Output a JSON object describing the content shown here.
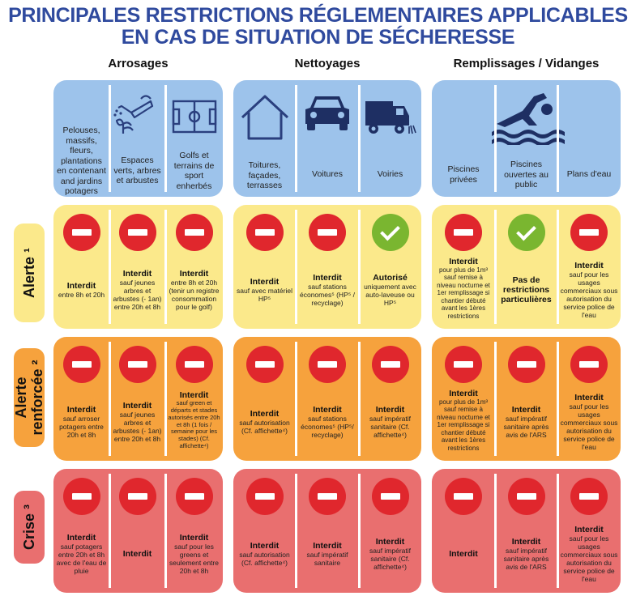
{
  "title": {
    "line1": "PRINCIPALES RESTRICTIONS RÉGLEMENTAIRES APPLICABLES",
    "line2": "EN CAS DE SITUATION DE SÉCHERESSE"
  },
  "categories": {
    "arrosages": "Arrosages",
    "nettoyages": "Nettoyages",
    "remplissages": "Remplissages / Vidanges"
  },
  "headers": {
    "pelouses": "Pelouses, massifs, fleurs, plantations en contenant and jardins potagers",
    "espaces": "Espaces verts, arbres et arbustes",
    "golfs": "Golfs et terrains de sport enherbés",
    "toitures": "Toitures, façades, terrasses",
    "voitures": "Voitures",
    "voiries": "Voiries",
    "piscines_privees": "Piscines privées",
    "piscines_public": "Piscines ouvertes au public",
    "plans": "Plans d'eau"
  },
  "levels": {
    "alerte": "Alerte ¹",
    "renforcee": "Alerte\nrenforcée ²",
    "crise": "Crise ³"
  },
  "rules": {
    "alerte": {
      "c1": {
        "status": "Interdit",
        "detail": "entre 8h et 20h"
      },
      "c2": {
        "status": "Interdit",
        "detail": "sauf jeunes arbres et arbustes (- 1an) entre 20h et 8h"
      },
      "c3": {
        "status": "Interdit",
        "detail": "entre 8h et 20h (tenir un registre consommation pour le golf)"
      },
      "c4": {
        "status": "Interdit",
        "detail": "sauf avec matériel HP⁵"
      },
      "c5": {
        "status": "Interdit",
        "detail": "sauf stations économes⁵ (HP⁵ / recyclage)"
      },
      "c6": {
        "status": "Autorisé",
        "detail": "uniquement avec auto-laveuse ou HP⁵"
      },
      "c7": {
        "status": "Interdit",
        "detail": "pour plus de 1m³ sauf remise à niveau nocturne et 1er remplissage si chantier débuté avant les 1ères restrictions"
      },
      "c8": {
        "status": "Pas de restrictions particulières",
        "detail": ""
      },
      "c9": {
        "status": "Interdit",
        "detail": "sauf pour les usages commerciaux sous autorisation du service police de l'eau"
      }
    },
    "renforcee": {
      "c1": {
        "status": "Interdit",
        "detail": "sauf arroser potagers entre 20h et 8h"
      },
      "c2": {
        "status": "Interdit",
        "detail": "sauf jeunes arbres et arbustes (- 1an) entre 20h et 8h"
      },
      "c3": {
        "status": "Interdit",
        "detail": "sauf green et départs et stades autorisés entre 20h et 8h (1 fois / semaine pour les stades) (Cf. affichette⁴)"
      },
      "c4": {
        "status": "Interdit",
        "detail": "sauf autorisation (Cf. affichette⁴)"
      },
      "c5": {
        "status": "Interdit",
        "detail": "sauf stations économes⁵ (HP⁵/ recyclage)"
      },
      "c6": {
        "status": "Interdit",
        "detail": "sauf impératif sanitaire (Cf. affichette⁴)"
      },
      "c7": {
        "status": "Interdit",
        "detail": "pour plus de 1m³ sauf remise à niveau nocturne et 1er remplissage si chantier débuté avant les 1ères restrictions"
      },
      "c8": {
        "status": "Interdit",
        "detail": "sauf impératif sanitaire après avis de l'ARS"
      },
      "c9": {
        "status": "Interdit",
        "detail": "sauf pour les usages commerciaux sous autorisation du service police de l'eau"
      }
    },
    "crise": {
      "c1": {
        "status": "Interdit",
        "detail": "sauf potagers entre 20h et 8h avec de l'eau de pluie"
      },
      "c2": {
        "status": "Interdit",
        "detail": ""
      },
      "c3": {
        "status": "Interdit",
        "detail": "sauf pour les greens et seulement entre 20h et 8h"
      },
      "c4": {
        "status": "Interdit",
        "detail": "sauf autorisation (Cf. affichette⁴)"
      },
      "c5": {
        "status": "Interdit",
        "detail": "sauf impératif sanitaire"
      },
      "c6": {
        "status": "Interdit",
        "detail": "sauf impératif sanitaire (Cf. affichette⁴)"
      },
      "c7": {
        "status": "Interdit",
        "detail": ""
      },
      "c8": {
        "status": "Interdit",
        "detail": "sauf impératif sanitaire après avis de l'ARS"
      },
      "c9": {
        "status": "Interdit",
        "detail": "sauf pour les usages commerciaux sous autorisation du service police de l'eau"
      }
    }
  },
  "colors": {
    "header": "#9dc3eb",
    "alerte": "#fbe98b",
    "renforcee": "#f6a23d",
    "crise": "#e96f6f",
    "forbidden": "#e0272d",
    "allowed": "#7ab630",
    "title": "#2f4a9e"
  },
  "icons": [
    "watering-can-icon",
    "sports-field-icon",
    "house-icon",
    "car-icon",
    "street-sweeper-icon",
    "swimmer-icon",
    "forbidden-icon",
    "check-icon"
  ]
}
